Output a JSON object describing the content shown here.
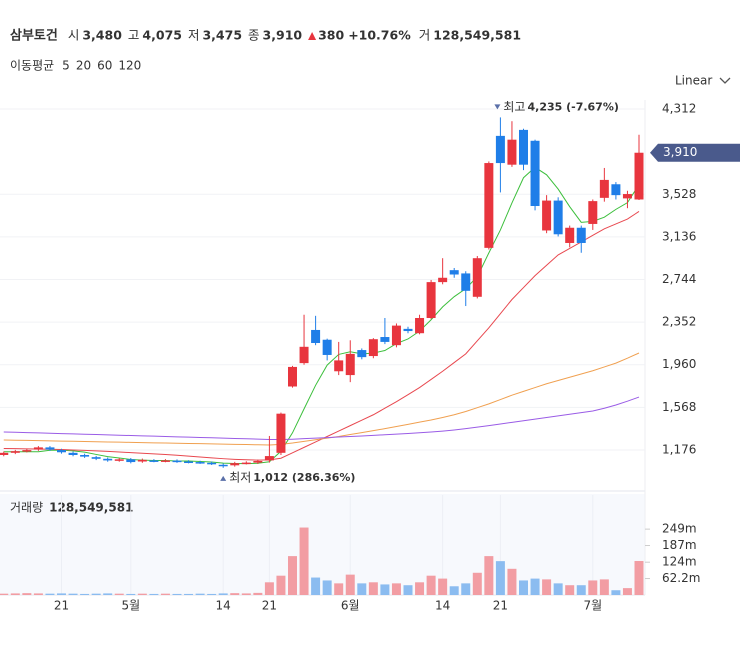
{
  "header": {
    "name": "삼부토건",
    "fields": [
      {
        "key": "시",
        "value": "3,480"
      },
      {
        "key": "고",
        "value": "4,075"
      },
      {
        "key": "저",
        "value": "3,475"
      },
      {
        "key": "종",
        "value": "3,910"
      }
    ],
    "change": "380",
    "change_pct": "+10.76%",
    "volume_key": "거",
    "volume": "128,549,581"
  },
  "chart_data": {
    "type": "candlestick",
    "scale": "Linear",
    "up_color": "#e8353e",
    "down_color": "#1f7ee8",
    "volume_up_color": "#f29da3",
    "volume_down_color": "#8bbcf0",
    "categories": [
      null,
      null,
      null,
      null,
      null,
      "21",
      null,
      null,
      null,
      null,
      null,
      "5월",
      null,
      null,
      null,
      null,
      null,
      null,
      null,
      "14",
      null,
      null,
      null,
      "21",
      null,
      null,
      null,
      null,
      null,
      null,
      "6월",
      null,
      null,
      null,
      null,
      null,
      null,
      null,
      "14",
      null,
      null,
      null,
      null,
      "21",
      null,
      null,
      null,
      null,
      null,
      null,
      null,
      "7월",
      null,
      null,
      null,
      null
    ],
    "open": [
      1130,
      1150,
      1165,
      1180,
      1200,
      1175,
      1150,
      1130,
      1110,
      1095,
      1080,
      1090,
      1070,
      1080,
      1075,
      1078,
      1070,
      1065,
      1058,
      1040,
      1035,
      1055,
      1060,
      1080,
      1150,
      1760,
      1975,
      2280,
      2190,
      1900,
      1865,
      2095,
      2040,
      2215,
      2140,
      2290,
      2250,
      2390,
      2720,
      2830,
      2800,
      2585,
      3035,
      4065,
      3800,
      4120,
      4020,
      3195,
      3470,
      3080,
      3220,
      3255,
      3495,
      3620,
      3490,
      3480
    ],
    "high": [
      1162,
      1177,
      1187,
      1212,
      1212,
      1187,
      1162,
      1142,
      1122,
      1107,
      1102,
      1102,
      1097,
      1092,
      1092,
      1090,
      1082,
      1077,
      1070,
      1052,
      1067,
      1072,
      1087,
      1305,
      1520,
      1950,
      2420,
      2410,
      2200,
      2170,
      2185,
      2110,
      2205,
      2390,
      2340,
      2310,
      2420,
      2740,
      2940,
      2850,
      2820,
      2960,
      3830,
      4235,
      4200,
      4130,
      4030,
      3520,
      3500,
      3240,
      3240,
      3480,
      3770,
      3640,
      3560,
      4075
    ],
    "low": [
      1118,
      1138,
      1153,
      1168,
      1168,
      1143,
      1118,
      1103,
      1083,
      1068,
      1068,
      1053,
      1058,
      1063,
      1063,
      1058,
      1053,
      1048,
      1038,
      1012,
      1023,
      1043,
      1048,
      1060,
      1130,
      1750,
      1960,
      2140,
      2000,
      1865,
      1800,
      2010,
      2020,
      2150,
      2120,
      2250,
      2240,
      2380,
      2700,
      2760,
      2500,
      2570,
      3020,
      3545,
      3780,
      3750,
      3380,
      3170,
      3140,
      3040,
      2990,
      3200,
      3460,
      3480,
      3400,
      3475
    ],
    "close": [
      1150,
      1165,
      1175,
      1200,
      1180,
      1155,
      1130,
      1115,
      1095,
      1080,
      1090,
      1065,
      1085,
      1075,
      1080,
      1070,
      1065,
      1060,
      1050,
      1030,
      1055,
      1060,
      1075,
      1120,
      1510,
      1940,
      2125,
      2160,
      2050,
      2000,
      2060,
      2030,
      2195,
      2170,
      2320,
      2270,
      2390,
      2720,
      2760,
      2790,
      2640,
      2940,
      3815,
      3815,
      4030,
      3800,
      3420,
      3470,
      3160,
      3220,
      3080,
      3465,
      3660,
      3520,
      3530,
      3910
    ],
    "ylim": [
      808,
      4395
    ],
    "yticks": [
      {
        "value": 1176,
        "label": "1,176"
      },
      {
        "value": 1568,
        "label": "1,568"
      },
      {
        "value": 1960,
        "label": "1,960"
      },
      {
        "value": 2352,
        "label": "2,352"
      },
      {
        "value": 2744,
        "label": "2,744"
      },
      {
        "value": 3136,
        "label": "3,136"
      },
      {
        "value": 3528,
        "label": "3,528"
      },
      {
        "value": 4312,
        "label": "4,312"
      }
    ],
    "price_tag": {
      "value": 3910,
      "label": "3,910"
    },
    "max_marker": {
      "label": "최고",
      "value": 4235,
      "value_label": "4,235 (-7.67%)"
    },
    "min_marker": {
      "label": "최저",
      "value": 1012,
      "value_label": "1,012 (286.36%)"
    },
    "ma": {
      "title": "이동평균",
      "series": [
        {
          "name": "5",
          "color": "#3cbf3c",
          "values": [
            1160,
            1160,
            1160,
            1160,
            1174,
            1175,
            1168,
            1156,
            1135,
            1115,
            1102,
            1089,
            1083,
            1079,
            1079,
            1075,
            1075,
            1070,
            1065,
            1055,
            1052,
            1051,
            1054,
            1068,
            1164,
            1334,
            1554,
            1771,
            1957,
            2055,
            2079,
            2060,
            2067,
            2091,
            2155,
            2197,
            2269,
            2374,
            2492,
            2586,
            2660,
            2770,
            2989,
            3200,
            3448,
            3680,
            3776,
            3707,
            3576,
            3414,
            3270,
            3279,
            3317,
            3389,
            3451,
            3617
          ]
        },
        {
          "name": "20",
          "color": "#e8484f",
          "values": [
            1190,
            1188,
            1186,
            1185,
            1183,
            1180,
            1176,
            1172,
            1168,
            1163,
            1158,
            1152,
            1146,
            1140,
            1134,
            1128,
            1120,
            1112,
            1104,
            1096,
            1090,
            1086,
            1083,
            1085,
            1100,
            1150,
            1200,
            1250,
            1300,
            1350,
            1400,
            1450,
            1500,
            1560,
            1620,
            1685,
            1750,
            1825,
            1900,
            1980,
            2060,
            2180,
            2300,
            2430,
            2560,
            2670,
            2780,
            2875,
            2970,
            3030,
            3090,
            3150,
            3210,
            3255,
            3300,
            3370
          ]
        },
        {
          "name": "60",
          "color": "#f0a050",
          "values": [
            1268,
            1266,
            1264,
            1262,
            1260,
            1258,
            1256,
            1254,
            1252,
            1250,
            1248,
            1246,
            1244,
            1242,
            1240,
            1238,
            1236,
            1234,
            1232,
            1230,
            1228,
            1226,
            1224,
            1222,
            1228,
            1240,
            1255,
            1270,
            1285,
            1300,
            1318,
            1336,
            1354,
            1372,
            1392,
            1412,
            1432,
            1452,
            1475,
            1500,
            1530,
            1565,
            1600,
            1640,
            1680,
            1715,
            1750,
            1785,
            1815,
            1845,
            1875,
            1905,
            1940,
            1975,
            2020,
            2068
          ]
        },
        {
          "name": "120",
          "color": "#9a5ce6",
          "values": [
            1342,
            1339,
            1336,
            1333,
            1330,
            1327,
            1324,
            1321,
            1318,
            1315,
            1312,
            1309,
            1306,
            1303,
            1300,
            1297,
            1294,
            1291,
            1288,
            1285,
            1282,
            1279,
            1276,
            1273,
            1272,
            1275,
            1280,
            1285,
            1290,
            1295,
            1300,
            1305,
            1310,
            1316,
            1322,
            1328,
            1335,
            1342,
            1350,
            1360,
            1372,
            1386,
            1400,
            1415,
            1430,
            1445,
            1460,
            1475,
            1490,
            1505,
            1520,
            1535,
            1560,
            1590,
            1625,
            1663
          ]
        }
      ]
    },
    "volume": {
      "title": "거래량",
      "title_value": "128,549,581",
      "values": [
        5,
        6,
        7,
        6,
        5,
        6,
        5,
        4,
        5,
        6,
        5,
        4,
        5,
        4,
        5,
        4,
        4,
        5,
        4,
        6,
        7,
        6,
        8,
        48,
        73,
        147,
        255,
        66,
        55,
        44,
        77,
        44,
        48,
        40,
        44,
        37,
        48,
        73,
        62,
        33,
        44,
        84,
        147,
        128,
        99,
        55,
        62,
        59,
        44,
        37,
        37,
        55,
        59,
        18,
        26,
        128.549581
      ],
      "ylim": [
        0,
        378
      ],
      "yticks": [
        {
          "value": 62.2,
          "label": "62.2m"
        },
        {
          "value": 124,
          "label": "124m"
        },
        {
          "value": 187,
          "label": "187m"
        },
        {
          "value": 249,
          "label": "249m"
        }
      ]
    }
  }
}
